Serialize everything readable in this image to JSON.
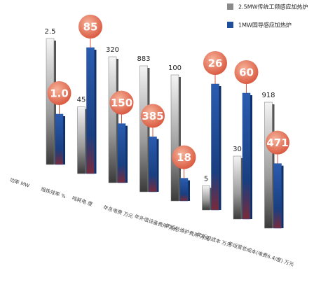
{
  "chart_data": {
    "type": "bar",
    "categories": [
      "功率 MW",
      "熔炼效率 %",
      "吨耗电 度",
      "年总电费 万元",
      "年补偿设备费用 万元",
      "年运行维护费用 万元",
      "年折旧成本 万元",
      "年运营总成本(电费6.4/度) 万元"
    ],
    "series": [
      {
        "name": "2.5MW传统工频感应加热炉",
        "color": "#8a8a8a",
        "values": [
          2.5,
          45,
          320,
          883,
          100,
          5,
          30,
          918
        ]
      },
      {
        "name": "1MW国导感应加热炉",
        "color": "#1f4e9c",
        "values": [
          1.0,
          85,
          150,
          385,
          18,
          26,
          60,
          471
        ],
        "value_labels": [
          "1.0",
          "85",
          "150",
          "385",
          "18",
          "26",
          "60",
          "471"
        ]
      }
    ],
    "legend": "top-right"
  }
}
